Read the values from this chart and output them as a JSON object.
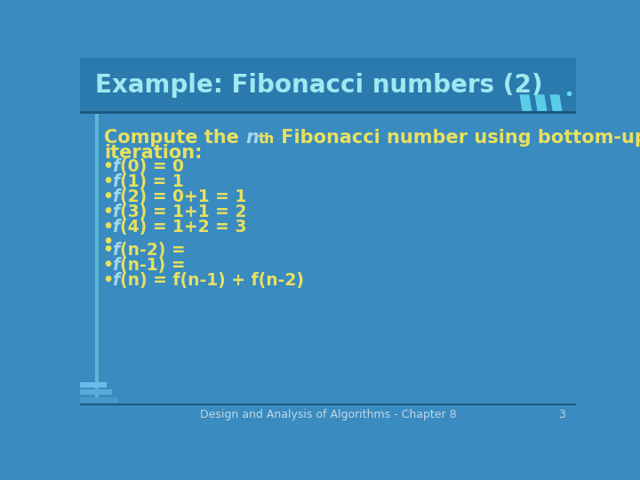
{
  "title": "Example: Fibonacci numbers (2)",
  "bg_color": "#3A8BBF",
  "title_bg_color": "#2B7AAE",
  "title_text_color": "#A0E8F0",
  "content_text_color": "#E8E060",
  "italic_color": "#A0D8EF",
  "footer_text": "Design and Analysis of Algorithms - Chapter 8",
  "footer_page": "3",
  "separator_color": "#1A5A80",
  "left_border_color": "#5BB8D8",
  "stripe_color": "#60D8F0",
  "title_font_size": 20,
  "content_font_size": 13.5,
  "intro_font_size": 15,
  "footer_font_size": 9,
  "bullet_items": [
    "f(0) = 0",
    "f(1) = 1",
    "f(2) = 0+1 = 1",
    "f(3) = 1+1 = 2",
    "f(4) = 1+2 = 3",
    "",
    "f(n-2) =",
    "f(n-1) =",
    "f(n) = f(n-1) + f(n-2)"
  ]
}
